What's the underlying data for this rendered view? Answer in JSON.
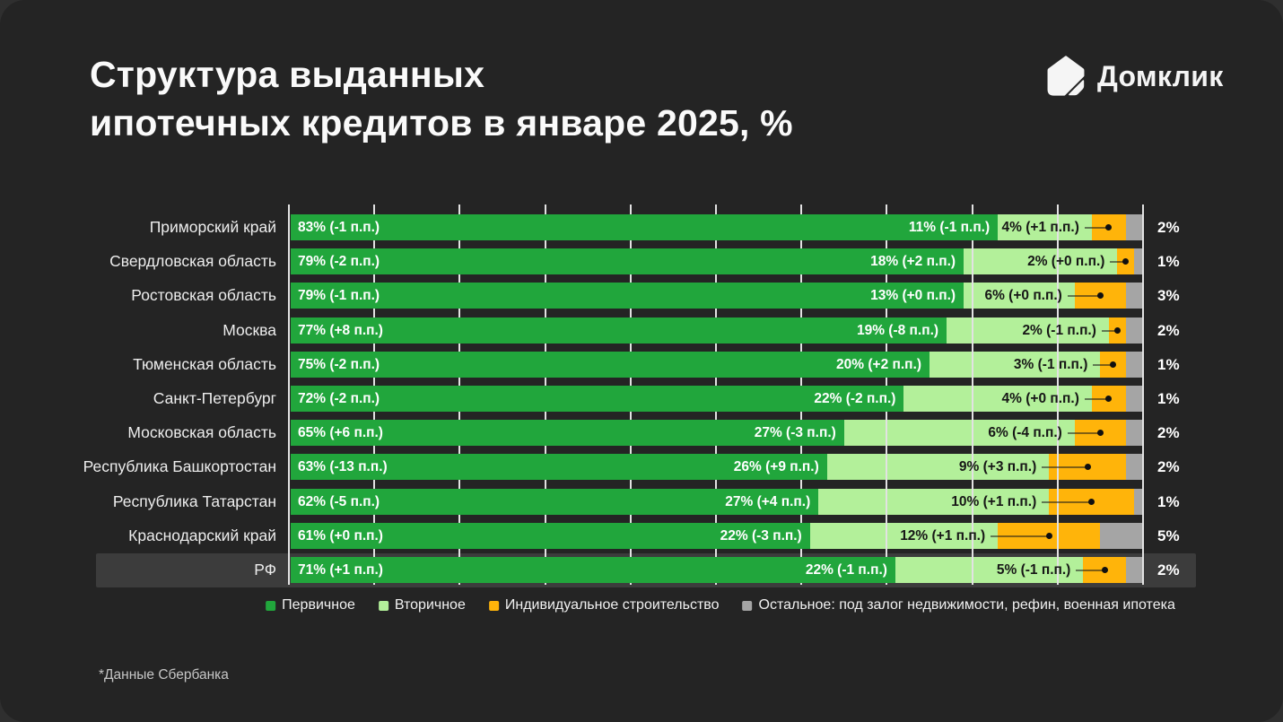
{
  "header": {
    "title_line1": "Структура выданных",
    "title_line2": "ипотечных кредитов в январе 2025, %",
    "brand": "Домклик"
  },
  "footnote": "*Данные Сбербанка",
  "colors": {
    "panel_background": "#242424",
    "row_highlight": "#3C3C3C",
    "gridline": "#E2E2E2",
    "primary_green": "#21A63C",
    "secondary_light_green": "#B3F09A",
    "individual_construction_yellow": "#FFB40A",
    "other_gray": "#A5A5A5"
  },
  "chart_data": {
    "type": "bar",
    "variant": "horizontal-stacked",
    "unit": "%",
    "x_axis": {
      "min": 0,
      "max": 100,
      "gridline_step": 10,
      "gridlines_visible": true
    },
    "legend_position": "bottom",
    "series": [
      {
        "key": "primary",
        "name": "Первичное",
        "color": "#21A63C"
      },
      {
        "key": "secondary",
        "name": "Вторичное",
        "color": "#B3F09A"
      },
      {
        "key": "individual-construction",
        "name": "Индивидуальное строительство",
        "color": "#FFB40A"
      },
      {
        "key": "other",
        "name": "Остальное: под залог недвижимости, рефин, военная ипотека",
        "color": "#A5A5A5"
      }
    ],
    "rows": [
      {
        "region": "Приморский край",
        "values": [
          83,
          11,
          4,
          2
        ],
        "labels": [
          "83% (-1 п.п.)",
          "11% (-1 п.п.)",
          "4% (+1 п.п.)",
          "2%"
        ],
        "highlight": false
      },
      {
        "region": "Свердловская область",
        "values": [
          79,
          18,
          2,
          1
        ],
        "labels": [
          "79% (-2 п.п.)",
          "18% (+2 п.п.)",
          "2% (+0 п.п.)",
          "1%"
        ],
        "highlight": false
      },
      {
        "region": "Ростовская область",
        "values": [
          79,
          13,
          6,
          3
        ],
        "labels": [
          "79% (-1 п.п.)",
          "13% (+0 п.п.)",
          "6% (+0 п.п.)",
          "3%"
        ],
        "highlight": false
      },
      {
        "region": "Москва",
        "values": [
          77,
          19,
          2,
          2
        ],
        "labels": [
          "77% (+8 п.п.)",
          "19% (-8 п.п.)",
          "2% (-1 п.п.)",
          "2%"
        ],
        "highlight": false
      },
      {
        "region": "Тюменская область",
        "values": [
          75,
          20,
          3,
          1
        ],
        "labels": [
          "75% (-2 п.п.)",
          "20% (+2 п.п.)",
          "3% (-1 п.п.)",
          "1%"
        ],
        "highlight": false
      },
      {
        "region": "Санкт-Петербург",
        "values": [
          72,
          22,
          4,
          1
        ],
        "labels": [
          "72% (-2 п.п.)",
          "22% (-2 п.п.)",
          "4% (+0 п.п.)",
          "1%"
        ],
        "highlight": false
      },
      {
        "region": "Московская область",
        "values": [
          65,
          27,
          6,
          2
        ],
        "labels": [
          "65% (+6 п.п.)",
          "27% (-3 п.п.)",
          "6% (-4 п.п.)",
          "2%"
        ],
        "highlight": false
      },
      {
        "region": "Республика Башкортостан",
        "values": [
          63,
          26,
          9,
          2
        ],
        "labels": [
          "63% (-13 п.п.)",
          "26% (+9 п.п.)",
          "9% (+3 п.п.)",
          "2%"
        ],
        "highlight": false
      },
      {
        "region": "Республика Татарстан",
        "values": [
          62,
          27,
          10,
          1
        ],
        "labels": [
          "62% (-5 п.п.)",
          "27% (+4 п.п.)",
          "10% (+1 п.п.)",
          "1%"
        ],
        "highlight": false
      },
      {
        "region": "Краснодарский край",
        "values": [
          61,
          22,
          12,
          5
        ],
        "labels": [
          "61% (+0 п.п.)",
          "22% (-3 п.п.)",
          "12% (+1 п.п.)",
          "5%"
        ],
        "highlight": false
      },
      {
        "region": "РФ",
        "values": [
          71,
          22,
          5,
          2
        ],
        "labels": [
          "71% (+1 п.п.)",
          "22% (-1 п.п.)",
          "5% (-1 п.п.)",
          "2%"
        ],
        "highlight": true
      }
    ]
  }
}
